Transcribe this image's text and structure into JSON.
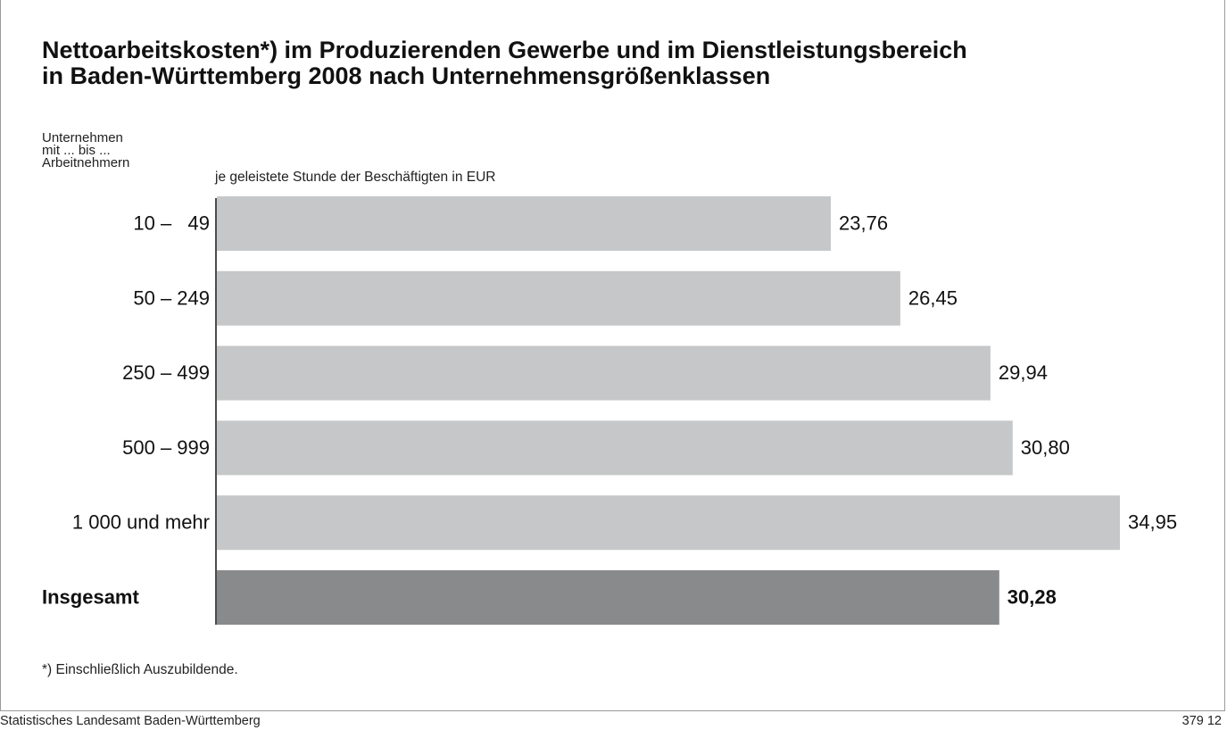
{
  "title_lines": [
    "Nettoarbeitskosten*) im Produzierenden Gewerbe und im Dienstleistungsbereich",
    "in Baden-Württemberg 2008 nach Unternehmensgrößenklassen"
  ],
  "axis_caption_lines": [
    "Unternehmen",
    "mit ... bis ...",
    "Arbeitnehmern"
  ],
  "unit_label": "je geleistete Stunde der Beschäftigten in EUR",
  "footnote": "*) Einschließlich Auszubildende.",
  "source": "Statistisches Landesamt Baden-Württemberg",
  "figure_code": "379 12",
  "colors": {
    "bar": "#c6c7c8",
    "total_bar": "#898a8c",
    "axis": "#111111",
    "text": "#111111"
  },
  "chart_data": {
    "type": "bar",
    "orientation": "horizontal",
    "categories": [
      "10 –   49",
      "50 – 249",
      "250 – 499",
      "500 – 999",
      "1 000 und mehr",
      "Insgesamt"
    ],
    "values": [
      23.76,
      26.45,
      29.94,
      30.8,
      34.95,
      30.28
    ],
    "value_labels": [
      "23,76",
      "26,45",
      "29,94",
      "30,80",
      "34,95",
      "30,28"
    ],
    "highlighted": [
      false,
      false,
      false,
      false,
      false,
      true
    ],
    "xlim": [
      0,
      34.95
    ],
    "grid": false,
    "title": "Nettoarbeitskosten*) im Produzierenden Gewerbe und im Dienstleistungsbereich in Baden-Württemberg 2008 nach Unternehmensgrößenklassen",
    "xlabel": "je geleistete Stunde der Beschäftigten in EUR",
    "ylabel": "Unternehmen mit ... bis ... Arbeitnehmern"
  }
}
